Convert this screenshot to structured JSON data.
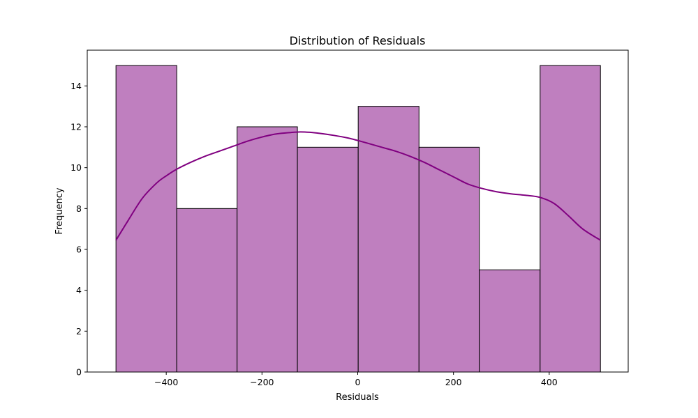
{
  "chart_data": {
    "type": "histogram",
    "title": "Distribution of Residuals",
    "xlabel": "Residuals",
    "ylabel": "Frequency",
    "xlim": [
      -565,
      565
    ],
    "ylim": [
      0,
      15.75
    ],
    "xticks": [
      -400,
      -200,
      0,
      200,
      400
    ],
    "yticks": [
      0,
      2,
      4,
      6,
      8,
      10,
      12,
      14
    ],
    "bin_edges": [
      -505,
      -378,
      -252,
      -126,
      1,
      128,
      254,
      381,
      507
    ],
    "counts": [
      15,
      8,
      12,
      11,
      13,
      11,
      5,
      15
    ],
    "kde": {
      "x": [
        -505,
        -480,
        -450,
        -420,
        -400,
        -380,
        -350,
        -320,
        -290,
        -260,
        -230,
        -200,
        -170,
        -140,
        -120,
        -100,
        -80,
        -50,
        -20,
        0,
        20,
        50,
        80,
        110,
        140,
        170,
        200,
        230,
        260,
        290,
        320,
        350,
        380,
        410,
        440,
        470,
        507
      ],
      "y": [
        6.45,
        7.4,
        8.5,
        9.25,
        9.6,
        9.9,
        10.25,
        10.55,
        10.8,
        11.05,
        11.3,
        11.5,
        11.65,
        11.72,
        11.75,
        11.73,
        11.68,
        11.58,
        11.45,
        11.33,
        11.2,
        11.0,
        10.8,
        10.55,
        10.25,
        9.9,
        9.55,
        9.2,
        8.98,
        8.82,
        8.72,
        8.65,
        8.55,
        8.25,
        7.65,
        7.0,
        6.45
      ]
    },
    "colors": {
      "bar_fill": "#bf7fbf",
      "bar_edge": "#000000",
      "kde_line": "#800080"
    },
    "grid": false,
    "legend": "none"
  }
}
